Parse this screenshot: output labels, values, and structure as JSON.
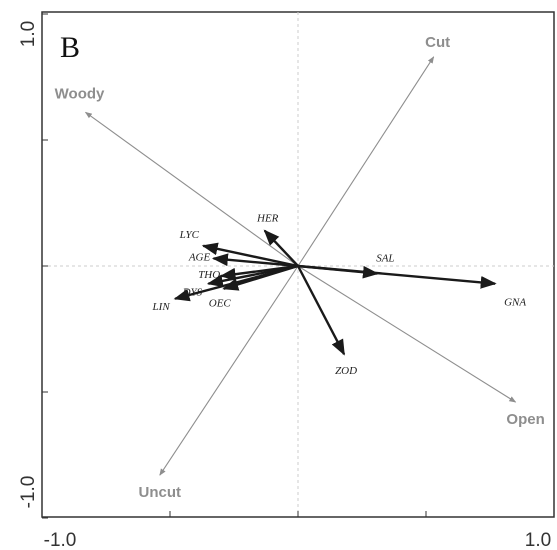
{
  "chart_data": {
    "type": "biplot",
    "panel_label": "B",
    "xlim": [
      -1.0,
      1.0
    ],
    "ylim": [
      -1.0,
      1.0
    ],
    "x_ticks": [
      {
        "value": -1.0,
        "label": "-1.0"
      },
      {
        "value": 1.0,
        "label": "1.0"
      }
    ],
    "y_ticks": [
      {
        "value": 1.0,
        "label": "1.0"
      },
      {
        "value": -1.0,
        "label": "-1.0"
      }
    ],
    "zero_lines": true,
    "environmental_vectors": [
      {
        "name": "Cut",
        "x": 0.53,
        "y": 0.83
      },
      {
        "name": "Woody",
        "x": -0.83,
        "y": 0.61
      },
      {
        "name": "Open",
        "x": 0.85,
        "y": -0.54
      },
      {
        "name": "Uncut",
        "x": -0.54,
        "y": -0.83
      }
    ],
    "species_vectors": [
      {
        "name": "HER",
        "x": -0.13,
        "y": 0.14
      },
      {
        "name": "LYC",
        "x": -0.37,
        "y": 0.08
      },
      {
        "name": "AGE",
        "x": -0.33,
        "y": 0.03
      },
      {
        "name": "SAL",
        "x": 0.31,
        "y": -0.03
      },
      {
        "name": "GNA",
        "x": 0.77,
        "y": -0.07
      },
      {
        "name": "THO",
        "x": -0.3,
        "y": -0.04
      },
      {
        "name": "DYS",
        "x": -0.35,
        "y": -0.07
      },
      {
        "name": "LIN",
        "x": -0.48,
        "y": -0.13
      },
      {
        "name": "OEC",
        "x": -0.29,
        "y": -0.09
      },
      {
        "name": "ZOD",
        "x": 0.18,
        "y": -0.35
      }
    ],
    "colors": {
      "environmental": "#8e8e8e",
      "species": "#1a1a1a",
      "frame": "#333333",
      "zero_line": "#cccccc"
    }
  }
}
